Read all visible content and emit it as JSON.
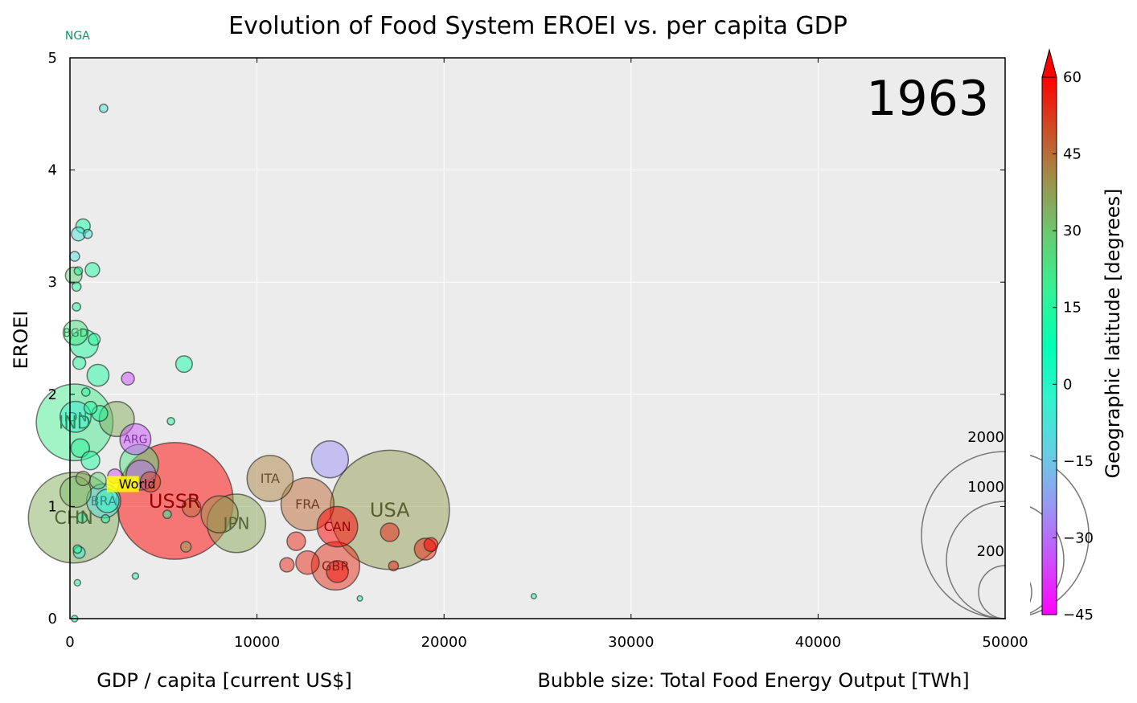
{
  "chart_data": {
    "type": "scatter",
    "title": "Evolution of Food System EROEI vs. per capita GDP",
    "xlabel": "GDP / capita [current US$]",
    "ylabel": "EROEI",
    "size_label": "Bubble size: Total Food Energy Output [TWh]",
    "year": "1963",
    "xlim": [
      0,
      50000
    ],
    "ylim": [
      0,
      5
    ],
    "x_ticks": [
      "0",
      "10000",
      "20000",
      "30000",
      "40000",
      "50000"
    ],
    "y_ticks": [
      "0",
      "1",
      "2",
      "3",
      "4",
      "5"
    ],
    "grid": true,
    "colorbar": {
      "label": "Geographic latitude [degrees]",
      "range": [
        -45,
        60
      ],
      "ticks": [
        "60",
        "45",
        "30",
        "15",
        "0",
        "−15",
        "−30",
        "−45"
      ],
      "tick_values": [
        60,
        45,
        30,
        15,
        0,
        -15,
        -30,
        -45
      ],
      "colormap": "rainbow"
    },
    "size_legend": [
      {
        "label": "2000",
        "value": 2000
      },
      {
        "label": "1000",
        "value": 1000
      },
      {
        "label": "200",
        "value": 200
      }
    ],
    "points": [
      {
        "label": "NGA",
        "x": 400,
        "y": 5.2,
        "size": 0,
        "lat": 10,
        "label_size": 14
      },
      {
        "label": "BGD",
        "x": 300,
        "y": 2.55,
        "size": 45,
        "lat": 24,
        "label_size": 14
      },
      {
        "label": "IDN",
        "x": 300,
        "y": 1.8,
        "size": 70,
        "lat": -5,
        "label_size": 16
      },
      {
        "label": "IND",
        "x": 250,
        "y": 1.75,
        "size": 430,
        "lat": 21,
        "label_size": 22
      },
      {
        "label": "ARG",
        "x": 3500,
        "y": 1.6,
        "size": 70,
        "lat": -34,
        "label_size": 14
      },
      {
        "label": "World",
        "x": 3600,
        "y": 1.2,
        "size": 0,
        "lat": 0,
        "label_size": 16
      },
      {
        "label": "BRA",
        "x": 1800,
        "y": 1.05,
        "size": 85,
        "lat": -10,
        "label_size": 16
      },
      {
        "label": "CHN",
        "x": 200,
        "y": 0.9,
        "size": 600,
        "lat": 35,
        "label_size": 22
      },
      {
        "label": "USSR",
        "x": 5600,
        "y": 1.05,
        "size": 1000,
        "lat": 60,
        "label_size": 24
      },
      {
        "label": "JPN",
        "x": 8900,
        "y": 0.85,
        "size": 250,
        "lat": 36,
        "label_size": 20
      },
      {
        "label": "ITA",
        "x": 10700,
        "y": 1.25,
        "size": 155,
        "lat": 42,
        "label_size": 16
      },
      {
        "label": "FRA",
        "x": 12700,
        "y": 1.02,
        "size": 205,
        "lat": 46,
        "label_size": 16
      },
      {
        "label": "CAN",
        "x": 14300,
        "y": 0.82,
        "size": 120,
        "lat": 60,
        "label_size": 16
      },
      {
        "label": "USA",
        "x": 17100,
        "y": 0.97,
        "size": 1040,
        "lat": 38,
        "label_size": 24
      },
      {
        "label": "GBR",
        "x": 14200,
        "y": 0.47,
        "size": 170,
        "lat": 54,
        "label_size": 16
      },
      {
        "label": "",
        "x": 2500,
        "y": 1.78,
        "size": 90,
        "lat": 35
      },
      {
        "label": "",
        "x": 13900,
        "y": 1.42,
        "size": 100,
        "lat": -25
      },
      {
        "label": "",
        "x": 3700,
        "y": 1.38,
        "size": 110,
        "lat": 24
      },
      {
        "label": "",
        "x": 3800,
        "y": 1.28,
        "size": 65,
        "lat": -30
      },
      {
        "label": "",
        "x": 4300,
        "y": 1.22,
        "size": 30,
        "lat": 50
      },
      {
        "label": "",
        "x": 6100,
        "y": 2.27,
        "size": 20,
        "lat": 12
      },
      {
        "label": "",
        "x": 3100,
        "y": 2.14,
        "size": 12,
        "lat": -35
      },
      {
        "label": "",
        "x": 1800,
        "y": 4.55,
        "size": 5,
        "lat": -8
      },
      {
        "label": "",
        "x": 700,
        "y": 3.5,
        "size": 15,
        "lat": 12
      },
      {
        "label": "",
        "x": 450,
        "y": 3.43,
        "size": 14,
        "lat": -8
      },
      {
        "label": "",
        "x": 950,
        "y": 3.43,
        "size": 6,
        "lat": -8
      },
      {
        "label": "",
        "x": 1200,
        "y": 3.11,
        "size": 15,
        "lat": 15
      },
      {
        "label": "",
        "x": 250,
        "y": 3.23,
        "size": 7,
        "lat": -8
      },
      {
        "label": "",
        "x": 200,
        "y": 3.06,
        "size": 20,
        "lat": 28
      },
      {
        "label": "",
        "x": 450,
        "y": 3.1,
        "size": 5,
        "lat": 14
      },
      {
        "label": "",
        "x": 350,
        "y": 2.96,
        "size": 6,
        "lat": 14
      },
      {
        "label": "",
        "x": 350,
        "y": 2.78,
        "size": 5,
        "lat": 14
      },
      {
        "label": "",
        "x": 750,
        "y": 2.45,
        "size": 60,
        "lat": 14
      },
      {
        "label": "",
        "x": 1300,
        "y": 2.49,
        "size": 10,
        "lat": 16
      },
      {
        "label": "",
        "x": 500,
        "y": 2.28,
        "size": 12,
        "lat": 14
      },
      {
        "label": "",
        "x": 1500,
        "y": 2.17,
        "size": 35,
        "lat": 14
      },
      {
        "label": "",
        "x": 850,
        "y": 2.02,
        "size": 5,
        "lat": 15
      },
      {
        "label": "",
        "x": 1100,
        "y": 1.88,
        "size": 12,
        "lat": 15
      },
      {
        "label": "",
        "x": 1600,
        "y": 1.83,
        "size": 18,
        "lat": 14
      },
      {
        "label": "",
        "x": 5400,
        "y": 1.76,
        "size": 4,
        "lat": 14
      },
      {
        "label": "",
        "x": 550,
        "y": 1.52,
        "size": 25,
        "lat": 16
      },
      {
        "label": "",
        "x": 1100,
        "y": 1.41,
        "size": 25,
        "lat": 14
      },
      {
        "label": "",
        "x": 1500,
        "y": 1.23,
        "size": 20,
        "lat": 28
      },
      {
        "label": "",
        "x": 700,
        "y": 1.25,
        "size": 15,
        "lat": 36
      },
      {
        "label": "",
        "x": 2400,
        "y": 1.27,
        "size": 15,
        "lat": -35
      },
      {
        "label": "",
        "x": 300,
        "y": 1.13,
        "size": 70,
        "lat": 32
      },
      {
        "label": "",
        "x": 2000,
        "y": 1.05,
        "size": 40,
        "lat": -2
      },
      {
        "label": "",
        "x": 6500,
        "y": 0.99,
        "size": 25,
        "lat": 45
      },
      {
        "label": "",
        "x": 8000,
        "y": 0.93,
        "size": 100,
        "lat": 40
      },
      {
        "label": "",
        "x": 5200,
        "y": 0.93,
        "size": 5,
        "lat": 14
      },
      {
        "label": "",
        "x": 650,
        "y": 0.9,
        "size": 8,
        "lat": 14
      },
      {
        "label": "",
        "x": 1900,
        "y": 0.89,
        "size": 5,
        "lat": 14
      },
      {
        "label": "",
        "x": 17100,
        "y": 0.77,
        "size": 25,
        "lat": 55
      },
      {
        "label": "",
        "x": 12100,
        "y": 0.69,
        "size": 25,
        "lat": 55
      },
      {
        "label": "",
        "x": 19300,
        "y": 0.66,
        "size": 14,
        "lat": 60
      },
      {
        "label": "",
        "x": 19000,
        "y": 0.62,
        "size": 35,
        "lat": 55
      },
      {
        "label": "",
        "x": 6200,
        "y": 0.64,
        "size": 8,
        "lat": 36
      },
      {
        "label": "",
        "x": 400,
        "y": 0.62,
        "size": 5,
        "lat": 14
      },
      {
        "label": "",
        "x": 500,
        "y": 0.59,
        "size": 10,
        "lat": -5
      },
      {
        "label": "",
        "x": 12700,
        "y": 0.5,
        "size": 40,
        "lat": 55
      },
      {
        "label": "",
        "x": 11600,
        "y": 0.48,
        "size": 15,
        "lat": 55
      },
      {
        "label": "",
        "x": 17300,
        "y": 0.47,
        "size": 7,
        "lat": 55
      },
      {
        "label": "",
        "x": 14300,
        "y": 0.42,
        "size": 35,
        "lat": 58
      },
      {
        "label": "",
        "x": 3500,
        "y": 0.38,
        "size": 3,
        "lat": 14
      },
      {
        "label": "",
        "x": 400,
        "y": 0.32,
        "size": 3,
        "lat": 14
      },
      {
        "label": "",
        "x": 15500,
        "y": 0.18,
        "size": 2,
        "lat": 14
      },
      {
        "label": "",
        "x": 24800,
        "y": 0.2,
        "size": 2,
        "lat": 14
      },
      {
        "label": "",
        "x": 250,
        "y": 0.0,
        "size": 3,
        "lat": 14
      }
    ]
  }
}
